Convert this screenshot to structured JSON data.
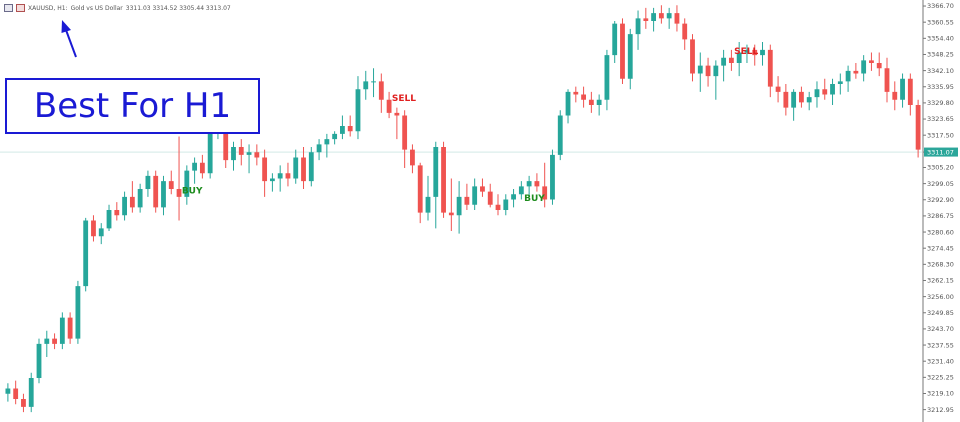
{
  "header": {
    "symbol": "XAUUSD, H1:",
    "description": "Gold vs US Dollar",
    "ohlc": "3311.03 3314.52 3305.44 3313.07",
    "icons": [
      "chart-table-icon",
      "chart-type-icon"
    ]
  },
  "annotation": {
    "text": "Best For H1",
    "color": "#1a1ad4"
  },
  "colors": {
    "bull": "#26a69a",
    "bear": "#ef5350",
    "buy_label": "#1e8c1e",
    "sell_label": "#e02020",
    "price_tag": "#2ba69a",
    "axis": "#555555"
  },
  "chart_data": {
    "type": "candlestick",
    "symbol": "XAUUSD",
    "timeframe": "H1",
    "ylim": [
      3209.0,
      3369.0
    ],
    "y_tick_labels": [
      "3366.70",
      "3360.55",
      "3354.40",
      "3348.25",
      "3342.10",
      "3335.95",
      "3329.80",
      "3323.65",
      "3317.50",
      "3311.07",
      "3305.20",
      "3299.05",
      "3292.90",
      "3286.75",
      "3280.60",
      "3274.45",
      "3268.30",
      "3262.15",
      "3256.00",
      "3249.85",
      "3243.70",
      "3237.55",
      "3231.40",
      "3225.25",
      "3219.10",
      "3212.95"
    ],
    "current_price": "3311.07",
    "current_price_value": 3311.07,
    "candles": [
      {
        "o": 3219,
        "h": 3223,
        "l": 3216,
        "c": 3221
      },
      {
        "o": 3221,
        "h": 3224,
        "l": 3215,
        "c": 3217
      },
      {
        "o": 3217,
        "h": 3219,
        "l": 3212,
        "c": 3214
      },
      {
        "o": 3214,
        "h": 3227,
        "l": 3212,
        "c": 3225
      },
      {
        "o": 3225,
        "h": 3240,
        "l": 3223,
        "c": 3238
      },
      {
        "o": 3238,
        "h": 3243,
        "l": 3233,
        "c": 3240
      },
      {
        "o": 3240,
        "h": 3242,
        "l": 3236,
        "c": 3238
      },
      {
        "o": 3238,
        "h": 3250,
        "l": 3236,
        "c": 3248
      },
      {
        "o": 3248,
        "h": 3250,
        "l": 3238,
        "c": 3240
      },
      {
        "o": 3240,
        "h": 3262,
        "l": 3238,
        "c": 3260
      },
      {
        "o": 3260,
        "h": 3286,
        "l": 3258,
        "c": 3285
      },
      {
        "o": 3285,
        "h": 3287,
        "l": 3277,
        "c": 3279
      },
      {
        "o": 3279,
        "h": 3284,
        "l": 3276,
        "c": 3282
      },
      {
        "o": 3282,
        "h": 3291,
        "l": 3281,
        "c": 3289
      },
      {
        "o": 3289,
        "h": 3292,
        "l": 3285,
        "c": 3287
      },
      {
        "o": 3287,
        "h": 3296,
        "l": 3285,
        "c": 3294
      },
      {
        "o": 3294,
        "h": 3300,
        "l": 3288,
        "c": 3290
      },
      {
        "o": 3290,
        "h": 3299,
        "l": 3288,
        "c": 3297
      },
      {
        "o": 3297,
        "h": 3304,
        "l": 3294,
        "c": 3302
      },
      {
        "o": 3302,
        "h": 3304,
        "l": 3288,
        "c": 3290
      },
      {
        "o": 3290,
        "h": 3302,
        "l": 3287,
        "c": 3300
      },
      {
        "o": 3300,
        "h": 3304,
        "l": 3295,
        "c": 3297
      },
      {
        "o": 3297,
        "h": 3317,
        "l": 3285,
        "c": 3294
      },
      {
        "o": 3294,
        "h": 3306,
        "l": 3291,
        "c": 3304
      },
      {
        "o": 3304,
        "h": 3309,
        "l": 3299,
        "c": 3307
      },
      {
        "o": 3307,
        "h": 3310,
        "l": 3301,
        "c": 3303
      },
      {
        "o": 3303,
        "h": 3322,
        "l": 3301,
        "c": 3320
      },
      {
        "o": 3320,
        "h": 3326,
        "l": 3316,
        "c": 3320
      },
      {
        "o": 3320,
        "h": 3324,
        "l": 3305,
        "c": 3308
      },
      {
        "o": 3308,
        "h": 3315,
        "l": 3304,
        "c": 3313
      },
      {
        "o": 3313,
        "h": 3316,
        "l": 3306,
        "c": 3310
      },
      {
        "o": 3310,
        "h": 3314,
        "l": 3303,
        "c": 3311
      },
      {
        "o": 3311,
        "h": 3314,
        "l": 3306,
        "c": 3309
      },
      {
        "o": 3309,
        "h": 3312,
        "l": 3294,
        "c": 3300
      },
      {
        "o": 3300,
        "h": 3303,
        "l": 3296,
        "c": 3301
      },
      {
        "o": 3301,
        "h": 3306,
        "l": 3296,
        "c": 3303
      },
      {
        "o": 3303,
        "h": 3307,
        "l": 3298,
        "c": 3301
      },
      {
        "o": 3301,
        "h": 3312,
        "l": 3299,
        "c": 3309
      },
      {
        "o": 3309,
        "h": 3313,
        "l": 3297,
        "c": 3300
      },
      {
        "o": 3300,
        "h": 3313,
        "l": 3298,
        "c": 3311
      },
      {
        "o": 3311,
        "h": 3316,
        "l": 3308,
        "c": 3314
      },
      {
        "o": 3314,
        "h": 3318,
        "l": 3309,
        "c": 3316
      },
      {
        "o": 3316,
        "h": 3319,
        "l": 3314,
        "c": 3318
      },
      {
        "o": 3318,
        "h": 3325,
        "l": 3316,
        "c": 3321
      },
      {
        "o": 3321,
        "h": 3325,
        "l": 3317,
        "c": 3319
      },
      {
        "o": 3319,
        "h": 3340,
        "l": 3316,
        "c": 3335
      },
      {
        "o": 3335,
        "h": 3342,
        "l": 3331,
        "c": 3338
      },
      {
        "o": 3338,
        "h": 3343,
        "l": 3332,
        "c": 3338
      },
      {
        "o": 3338,
        "h": 3341,
        "l": 3326,
        "c": 3331
      },
      {
        "o": 3331,
        "h": 3334,
        "l": 3324,
        "c": 3326
      },
      {
        "o": 3326,
        "h": 3328,
        "l": 3316,
        "c": 3325
      },
      {
        "o": 3325,
        "h": 3327,
        "l": 3305,
        "c": 3312
      },
      {
        "o": 3312,
        "h": 3314,
        "l": 3303,
        "c": 3306
      },
      {
        "o": 3306,
        "h": 3307,
        "l": 3284,
        "c": 3288
      },
      {
        "o": 3288,
        "h": 3302,
        "l": 3285,
        "c": 3294
      },
      {
        "o": 3294,
        "h": 3315,
        "l": 3282,
        "c": 3313
      },
      {
        "o": 3313,
        "h": 3315,
        "l": 3286,
        "c": 3288
      },
      {
        "o": 3288,
        "h": 3301,
        "l": 3281,
        "c": 3287
      },
      {
        "o": 3287,
        "h": 3300,
        "l": 3280,
        "c": 3294
      },
      {
        "o": 3294,
        "h": 3299,
        "l": 3289,
        "c": 3291
      },
      {
        "o": 3291,
        "h": 3301,
        "l": 3289,
        "c": 3298
      },
      {
        "o": 3298,
        "h": 3301,
        "l": 3294,
        "c": 3296
      },
      {
        "o": 3296,
        "h": 3299,
        "l": 3290,
        "c": 3291
      },
      {
        "o": 3291,
        "h": 3295,
        "l": 3287,
        "c": 3289
      },
      {
        "o": 3289,
        "h": 3295,
        "l": 3287,
        "c": 3293
      },
      {
        "o": 3293,
        "h": 3297,
        "l": 3290,
        "c": 3295
      },
      {
        "o": 3295,
        "h": 3300,
        "l": 3293,
        "c": 3298
      },
      {
        "o": 3298,
        "h": 3302,
        "l": 3294,
        "c": 3300
      },
      {
        "o": 3300,
        "h": 3303,
        "l": 3296,
        "c": 3298
      },
      {
        "o": 3298,
        "h": 3307,
        "l": 3290,
        "c": 3293
      },
      {
        "o": 3293,
        "h": 3312,
        "l": 3291,
        "c": 3310
      },
      {
        "o": 3310,
        "h": 3327,
        "l": 3308,
        "c": 3325
      },
      {
        "o": 3325,
        "h": 3335,
        "l": 3322,
        "c": 3334
      },
      {
        "o": 3334,
        "h": 3336,
        "l": 3330,
        "c": 3333
      },
      {
        "o": 3333,
        "h": 3336,
        "l": 3328,
        "c": 3331
      },
      {
        "o": 3331,
        "h": 3334,
        "l": 3326,
        "c": 3329
      },
      {
        "o": 3329,
        "h": 3333,
        "l": 3325,
        "c": 3331
      },
      {
        "o": 3331,
        "h": 3350,
        "l": 3327,
        "c": 3348
      },
      {
        "o": 3348,
        "h": 3361,
        "l": 3345,
        "c": 3360
      },
      {
        "o": 3360,
        "h": 3362,
        "l": 3337,
        "c": 3339
      },
      {
        "o": 3339,
        "h": 3358,
        "l": 3335,
        "c": 3356
      },
      {
        "o": 3356,
        "h": 3365,
        "l": 3350,
        "c": 3362
      },
      {
        "o": 3362,
        "h": 3366,
        "l": 3358,
        "c": 3361
      },
      {
        "o": 3361,
        "h": 3366,
        "l": 3357,
        "c": 3364
      },
      {
        "o": 3364,
        "h": 3367,
        "l": 3360,
        "c": 3362
      },
      {
        "o": 3362,
        "h": 3366,
        "l": 3358,
        "c": 3364
      },
      {
        "o": 3364,
        "h": 3367,
        "l": 3357,
        "c": 3360
      },
      {
        "o": 3360,
        "h": 3362,
        "l": 3350,
        "c": 3354
      },
      {
        "o": 3354,
        "h": 3356,
        "l": 3338,
        "c": 3341
      },
      {
        "o": 3341,
        "h": 3349,
        "l": 3334,
        "c": 3344
      },
      {
        "o": 3344,
        "h": 3347,
        "l": 3336,
        "c": 3340
      },
      {
        "o": 3340,
        "h": 3346,
        "l": 3331,
        "c": 3344
      },
      {
        "o": 3344,
        "h": 3350,
        "l": 3338,
        "c": 3347
      },
      {
        "o": 3347,
        "h": 3350,
        "l": 3342,
        "c": 3345
      },
      {
        "o": 3345,
        "h": 3353,
        "l": 3340,
        "c": 3349
      },
      {
        "o": 3349,
        "h": 3352,
        "l": 3345,
        "c": 3350
      },
      {
        "o": 3350,
        "h": 3352,
        "l": 3344,
        "c": 3348
      },
      {
        "o": 3348,
        "h": 3353,
        "l": 3344,
        "c": 3350
      },
      {
        "o": 3350,
        "h": 3352,
        "l": 3332,
        "c": 3336
      },
      {
        "o": 3336,
        "h": 3340,
        "l": 3330,
        "c": 3334
      },
      {
        "o": 3334,
        "h": 3337,
        "l": 3325,
        "c": 3328
      },
      {
        "o": 3328,
        "h": 3335,
        "l": 3323,
        "c": 3334
      },
      {
        "o": 3334,
        "h": 3336,
        "l": 3328,
        "c": 3330
      },
      {
        "o": 3330,
        "h": 3334,
        "l": 3327,
        "c": 3332
      },
      {
        "o": 3332,
        "h": 3338,
        "l": 3328,
        "c": 3335
      },
      {
        "o": 3335,
        "h": 3339,
        "l": 3331,
        "c": 3333
      },
      {
        "o": 3333,
        "h": 3339,
        "l": 3329,
        "c": 3337
      },
      {
        "o": 3337,
        "h": 3341,
        "l": 3333,
        "c": 3338
      },
      {
        "o": 3338,
        "h": 3344,
        "l": 3334,
        "c": 3342
      },
      {
        "o": 3342,
        "h": 3345,
        "l": 3339,
        "c": 3341
      },
      {
        "o": 3341,
        "h": 3348,
        "l": 3338,
        "c": 3346
      },
      {
        "o": 3346,
        "h": 3349,
        "l": 3342,
        "c": 3345
      },
      {
        "o": 3345,
        "h": 3349,
        "l": 3340,
        "c": 3343
      },
      {
        "o": 3343,
        "h": 3347,
        "l": 3330,
        "c": 3334
      },
      {
        "o": 3334,
        "h": 3338,
        "l": 3327,
        "c": 3331
      },
      {
        "o": 3331,
        "h": 3341,
        "l": 3328,
        "c": 3339
      },
      {
        "o": 3339,
        "h": 3341,
        "l": 3325,
        "c": 3329
      },
      {
        "o": 3329,
        "h": 3331,
        "l": 3309,
        "c": 3312
      }
    ],
    "signals": [
      {
        "label": "BUY",
        "index": 23,
        "price": 3295.3,
        "kind": "buy"
      },
      {
        "label": "SELL",
        "index": 50,
        "price": 3330.5,
        "kind": "sell"
      },
      {
        "label": "BUY",
        "index": 67,
        "price": 3292.4,
        "kind": "buy"
      },
      {
        "label": "SELL",
        "index": 94,
        "price": 3348.4,
        "kind": "sell"
      }
    ]
  }
}
